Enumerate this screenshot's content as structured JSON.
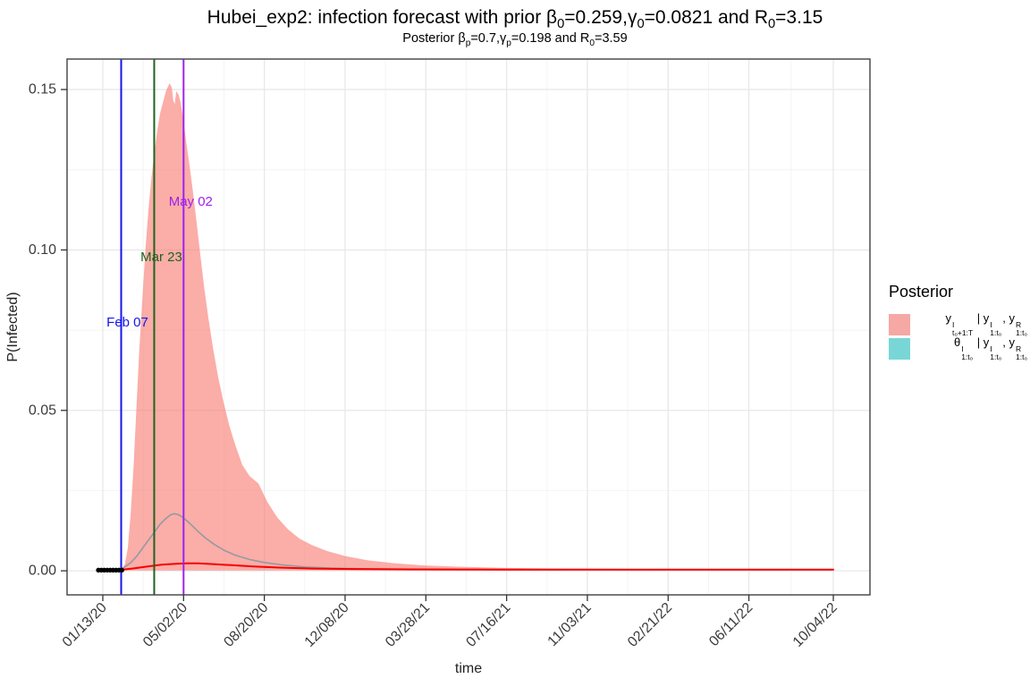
{
  "title": {
    "text": "Hubei_exp2: infection forecast with prior β0=0.259,γ0=0.0821 and R0=3.15",
    "parts": [
      [
        "n",
        "Hubei_exp2: infection forecast with prior β"
      ],
      [
        "sub",
        "0"
      ],
      [
        "n",
        "=0.259,γ"
      ],
      [
        "sub",
        "0"
      ],
      [
        "n",
        "=0.0821 and R"
      ],
      [
        "sub",
        "0"
      ],
      [
        "n",
        "=3.15"
      ]
    ]
  },
  "subtitle": {
    "text": "Posterior βp=0.7,γp=0.198 and R0=3.59",
    "parts": [
      [
        "n",
        "Posterior β"
      ],
      [
        "sub",
        "p"
      ],
      [
        "n",
        "=0.7,γ"
      ],
      [
        "sub",
        "p"
      ],
      [
        "n",
        "=0.198 and R"
      ],
      [
        "sub",
        "0"
      ],
      [
        "n",
        "=3.59"
      ]
    ]
  },
  "legend": {
    "title": "Posterior",
    "items": [
      {
        "swatch_color": "#F6A8A4",
        "text": "y^I_(t0+1:T) | y^I_(1:t0), y^R_(1:t0)",
        "parts": [
          [
            "n",
            "y"
          ],
          [
            "st",
            "I",
            "t₀+1:T"
          ],
          [
            "n",
            " | y"
          ],
          [
            "st",
            "I",
            "1:t₀"
          ],
          [
            "n",
            ", y"
          ],
          [
            "st",
            "R",
            "1:t₀"
          ]
        ]
      },
      {
        "swatch_color": "#79D6D6",
        "text": "θ^I_(1:t0) | y^I_(1:t0), y^R_(1:t0)",
        "parts": [
          [
            "n",
            "θ"
          ],
          [
            "st",
            "I",
            "1:t₀"
          ],
          [
            "n",
            " | y"
          ],
          [
            "st",
            "I",
            "1:t₀"
          ],
          [
            "n",
            ", y"
          ],
          [
            "st",
            "R",
            "1:t₀"
          ]
        ]
      }
    ]
  },
  "chart_data": {
    "type": "area",
    "title": "Hubei_exp2: infection forecast with prior β0=0.259,γ0=0.0821 and R0=3.15",
    "subtitle": "Posterior βp=0.7,γp=0.198 and R0=3.59",
    "xlabel": "time",
    "ylabel": "P(Infected)",
    "x_ticks": [
      {
        "label": "01/13/20",
        "day": 0
      },
      {
        "label": "05/02/20",
        "day": 110
      },
      {
        "label": "08/20/20",
        "day": 220
      },
      {
        "label": "12/08/20",
        "day": 330
      },
      {
        "label": "03/28/21",
        "day": 440
      },
      {
        "label": "07/16/21",
        "day": 550
      },
      {
        "label": "11/03/21",
        "day": 660
      },
      {
        "label": "02/21/22",
        "day": 770
      },
      {
        "label": "06/11/22",
        "day": 880
      },
      {
        "label": "10/04/22",
        "day": 995
      }
    ],
    "y_ticks": [
      {
        "label": "0.00",
        "value": 0.0
      },
      {
        "label": "0.05",
        "value": 0.05
      },
      {
        "label": "0.10",
        "value": 0.1
      },
      {
        "label": "0.15",
        "value": 0.15
      }
    ],
    "xlim_days": [
      -48.7,
      1044.9
    ],
    "ylim": [
      -0.0075,
      0.1595
    ],
    "grid": {
      "major": "#E8E8E8",
      "minor": "#F4F4F4"
    },
    "axis_color": "#4D4D4D",
    "tick_text_color": "#3C3C3C",
    "vlines": [
      {
        "label": "Feb 07",
        "day": 25,
        "color": "#1414EE",
        "label_value": 0.0761,
        "label_dx": 7
      },
      {
        "label": "Mar 23",
        "day": 70,
        "color": "#1E641E",
        "label_value": 0.0965,
        "label_dx": 8
      },
      {
        "label": "May 02",
        "day": 110,
        "color": "#A020F0",
        "label_value": 0.1138,
        "label_dx": 8
      }
    ],
    "ribbon": {
      "name": "forecast credible interval y(t0+1:T)",
      "color": "#F8766D",
      "opacity": 0.6,
      "points": [
        [
          25,
          0.0004,
          0.0001
        ],
        [
          30,
          0.002,
          0.0001
        ],
        [
          34,
          0.007,
          0.0001
        ],
        [
          38,
          0.018,
          0.0001
        ],
        [
          42,
          0.033,
          0.0001
        ],
        [
          46,
          0.052,
          0.0001
        ],
        [
          50,
          0.07,
          0.0001
        ],
        [
          54,
          0.085,
          0.0001
        ],
        [
          58,
          0.1,
          0.0001
        ],
        [
          62,
          0.112,
          0.0001
        ],
        [
          66,
          0.122,
          0.0001
        ],
        [
          70,
          0.13,
          0.0001
        ],
        [
          74,
          0.137,
          0.0001
        ],
        [
          78,
          0.1425,
          0.0001
        ],
        [
          82,
          0.146,
          0.0001
        ],
        [
          86,
          0.1495,
          0.0001
        ],
        [
          88,
          0.1505,
          0.0001
        ],
        [
          91,
          0.152,
          0.0001
        ],
        [
          94,
          0.1505,
          0.0001
        ],
        [
          96,
          0.1465,
          0.0001
        ],
        [
          98,
          0.1455,
          0.0001
        ],
        [
          100,
          0.1495,
          0.0001
        ],
        [
          103,
          0.1485,
          0.0001
        ],
        [
          106,
          0.146,
          0.0001
        ],
        [
          110,
          0.14,
          0.0001
        ],
        [
          114,
          0.133,
          0.0001
        ],
        [
          118,
          0.1265,
          0.0001
        ],
        [
          122,
          0.1195,
          0.0001
        ],
        [
          127,
          0.11,
          0.0001
        ],
        [
          132,
          0.1,
          0.0001
        ],
        [
          138,
          0.0885,
          0.0001
        ],
        [
          144,
          0.0785,
          0.0001
        ],
        [
          150,
          0.0695,
          0.0001
        ],
        [
          157,
          0.0605,
          0.0001
        ],
        [
          164,
          0.053,
          0.0001
        ],
        [
          172,
          0.0455,
          0.0001
        ],
        [
          180,
          0.0395,
          0.0001
        ],
        [
          190,
          0.033,
          0.0001
        ],
        [
          200,
          0.0295,
          0.0001
        ],
        [
          212,
          0.0272,
          0.0001
        ],
        [
          224,
          0.0215,
          0.0001
        ],
        [
          238,
          0.0165,
          0.0001
        ],
        [
          252,
          0.013,
          0.0001
        ],
        [
          268,
          0.01,
          0.0001
        ],
        [
          285,
          0.008,
          0.0001
        ],
        [
          305,
          0.0062,
          0.0001
        ],
        [
          330,
          0.0046,
          0.0001
        ],
        [
          360,
          0.0033,
          0.0001
        ],
        [
          395,
          0.0024,
          0.0001
        ],
        [
          435,
          0.0017,
          0.0001
        ],
        [
          480,
          0.0013,
          0.0001
        ],
        [
          540,
          0.00095,
          0.0001
        ],
        [
          620,
          0.0007,
          0.0001
        ],
        [
          720,
          0.00058,
          0.0001
        ],
        [
          995,
          0.0005,
          0.0001
        ]
      ]
    },
    "lines": [
      {
        "name": "posterior-mean-theta",
        "color": "#929BA1",
        "width": 1.6,
        "points": [
          [
            25,
            0.0004
          ],
          [
            30,
            0.0012
          ],
          [
            38,
            0.0025
          ],
          [
            46,
            0.0045
          ],
          [
            54,
            0.007
          ],
          [
            62,
            0.0095
          ],
          [
            70,
            0.012
          ],
          [
            78,
            0.0145
          ],
          [
            86,
            0.0163
          ],
          [
            92,
            0.0174
          ],
          [
            97,
            0.0178
          ],
          [
            102,
            0.0176
          ],
          [
            108,
            0.0168
          ],
          [
            115,
            0.0155
          ],
          [
            122,
            0.014
          ],
          [
            130,
            0.0122
          ],
          [
            140,
            0.0102
          ],
          [
            152,
            0.0082
          ],
          [
            165,
            0.0064
          ],
          [
            180,
            0.0049
          ],
          [
            200,
            0.0035
          ],
          [
            220,
            0.0026
          ],
          [
            245,
            0.0018
          ],
          [
            275,
            0.0012
          ],
          [
            310,
            0.00085
          ],
          [
            360,
            0.0006
          ],
          [
            430,
            0.00045
          ],
          [
            550,
            0.00035
          ],
          [
            995,
            0.0003
          ]
        ]
      },
      {
        "name": "forecast-median",
        "color": "#F80000",
        "width": 2,
        "points": [
          [
            20,
            0.0002
          ],
          [
            40,
            0.0007
          ],
          [
            60,
            0.0013
          ],
          [
            80,
            0.0019
          ],
          [
            100,
            0.0022
          ],
          [
            115,
            0.00235
          ],
          [
            130,
            0.0023
          ],
          [
            150,
            0.0021
          ],
          [
            175,
            0.00175
          ],
          [
            205,
            0.00135
          ],
          [
            240,
            0.001
          ],
          [
            285,
            0.0007
          ],
          [
            340,
            0.00055
          ],
          [
            420,
            0.00045
          ],
          [
            550,
            0.0004
          ],
          [
            995,
            0.00038
          ]
        ]
      }
    ],
    "dots": {
      "name": "observed-data-points",
      "color": "#000000",
      "r": 2.7,
      "value": 0.0002,
      "days": [
        -6,
        -2,
        2,
        6,
        10,
        14,
        18,
        22,
        26
      ]
    }
  }
}
